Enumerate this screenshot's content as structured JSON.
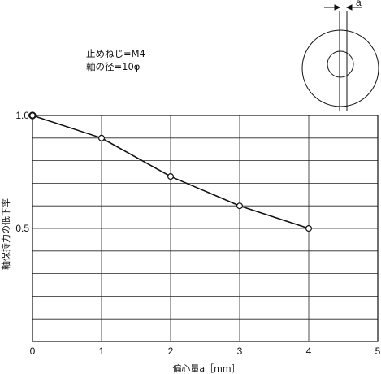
{
  "chart_data": {
    "type": "line",
    "title": "",
    "xlabel": "偏心量a［mm］",
    "ylabel": "軸保持力の低下率",
    "xlim": [
      0,
      5
    ],
    "ylim": [
      0,
      1.0
    ],
    "x_ticks": [
      "0",
      "1",
      "2",
      "3",
      "4",
      "5"
    ],
    "y_ticks": [
      {
        "value": 1.0,
        "label": "1.0"
      },
      {
        "value": 0.5,
        "label": "0.5"
      }
    ],
    "grid": true,
    "x": [
      0,
      1,
      2,
      3,
      4
    ],
    "values": [
      1.0,
      0.9,
      0.73,
      0.6,
      0.5
    ],
    "annotations": [
      "止めねじ=M4",
      "軸の径=10φ"
    ],
    "inset_label": "a"
  }
}
